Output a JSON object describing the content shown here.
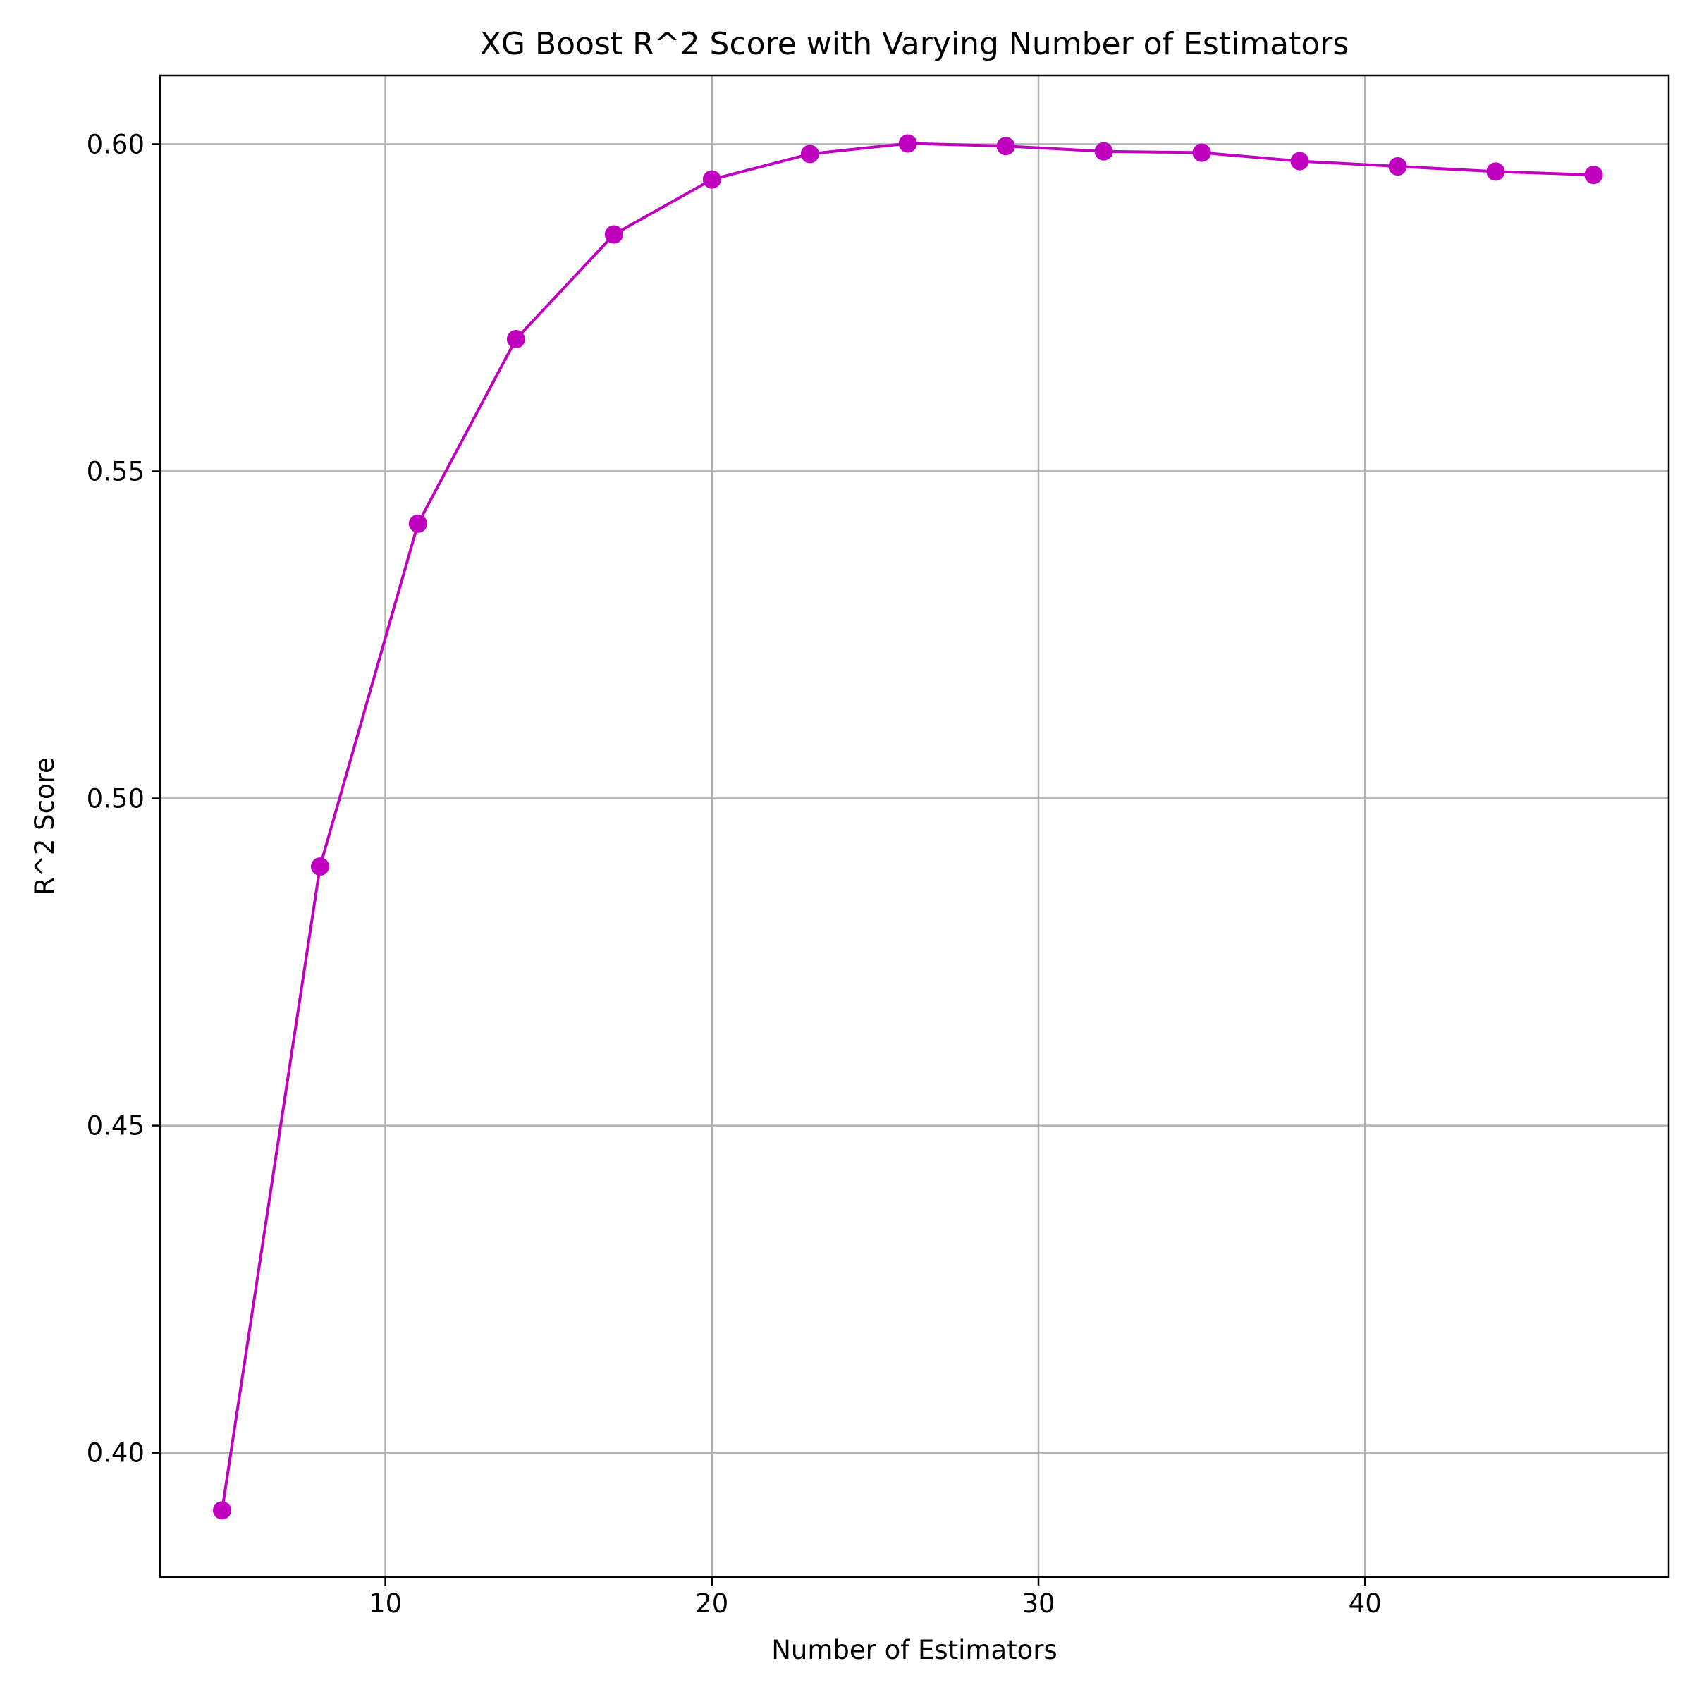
{
  "chart_data": {
    "type": "line",
    "title": "XG Boost R^2 Score with Varying Number of Estimators",
    "xlabel": "Number of Estimators",
    "ylabel": "R^2 Score",
    "x": [
      5,
      8,
      11,
      14,
      17,
      20,
      23,
      26,
      29,
      32,
      35,
      38,
      41,
      44,
      47
    ],
    "series": [
      {
        "values": [
          0.3912,
          0.4896,
          0.542,
          0.5702,
          0.5862,
          0.5946,
          0.5985,
          0.6001,
          0.5997,
          0.5989,
          0.5987,
          0.5974,
          0.5966,
          0.5958,
          0.5953
        ],
        "color": "#bf00bf",
        "marker": "circle"
      }
    ],
    "xlim": [
      3.1,
      49.3
    ],
    "ylim": [
      0.381,
      0.6105
    ],
    "xticks": [
      10,
      20,
      30,
      40
    ],
    "xtick_labels": [
      "10",
      "20",
      "30",
      "40"
    ],
    "yticks": [
      0.4,
      0.45,
      0.5,
      0.55,
      0.6
    ],
    "ytick_labels": [
      "0.40",
      "0.45",
      "0.50",
      "0.55",
      "0.60"
    ],
    "grid": true,
    "colors": {
      "grid": "#b0b0b0",
      "axis": "#000000"
    }
  }
}
